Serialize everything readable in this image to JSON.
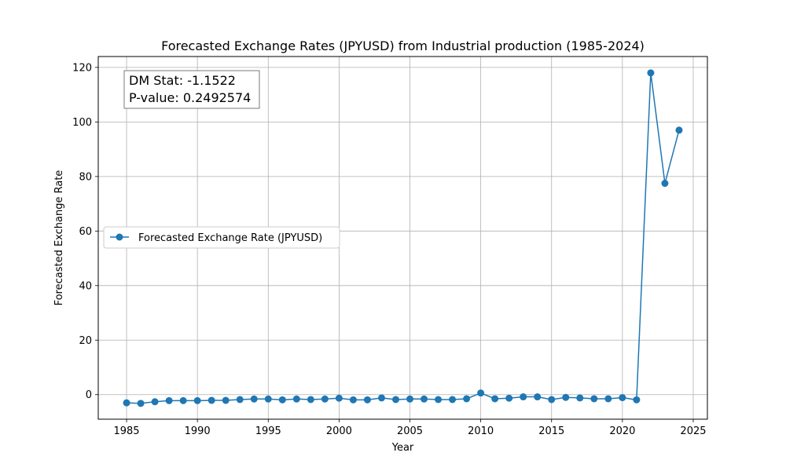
{
  "chart_data": {
    "type": "line",
    "title": "Forecasted Exchange Rates (JPYUSD) from Industrial production (1985-2024)",
    "xlabel": "Year",
    "ylabel": "Forecasted Exchange Rate",
    "xlim": [
      1983,
      2026
    ],
    "ylim": [
      -9,
      124
    ],
    "xticks": [
      1985,
      1990,
      1995,
      2000,
      2005,
      2010,
      2015,
      2020,
      2025
    ],
    "yticks": [
      0,
      20,
      40,
      60,
      80,
      100,
      120
    ],
    "grid": true,
    "legend": {
      "placement": "center-left",
      "entries": [
        "Forecasted Exchange Rate (JPYUSD)"
      ]
    },
    "annotation": {
      "line1": "DM Stat: -1.1522",
      "line2": "P-value: 0.2492574",
      "placement": "top-left"
    },
    "series": [
      {
        "name": "Forecasted Exchange Rate (JPYUSD)",
        "color": "#1f77b4",
        "x": [
          1985,
          1986,
          1987,
          1988,
          1989,
          1990,
          1991,
          1992,
          1993,
          1994,
          1995,
          1996,
          1997,
          1998,
          1999,
          2000,
          2001,
          2002,
          2003,
          2004,
          2005,
          2006,
          2007,
          2008,
          2009,
          2010,
          2011,
          2012,
          2013,
          2014,
          2015,
          2016,
          2017,
          2018,
          2019,
          2020,
          2021,
          2022,
          2023,
          2024
        ],
        "values": [
          -3.0,
          -3.2,
          -2.6,
          -2.2,
          -2.2,
          -2.2,
          -2.1,
          -2.1,
          -1.8,
          -1.6,
          -1.6,
          -1.9,
          -1.6,
          -1.8,
          -1.6,
          -1.3,
          -1.9,
          -1.9,
          -1.2,
          -1.8,
          -1.6,
          -1.6,
          -1.8,
          -1.8,
          -1.5,
          0.6,
          -1.5,
          -1.3,
          -0.8,
          -0.8,
          -1.8,
          -1.0,
          -1.2,
          -1.5,
          -1.5,
          -1.1,
          -1.9,
          118.0,
          77.5,
          97.0
        ]
      }
    ]
  }
}
